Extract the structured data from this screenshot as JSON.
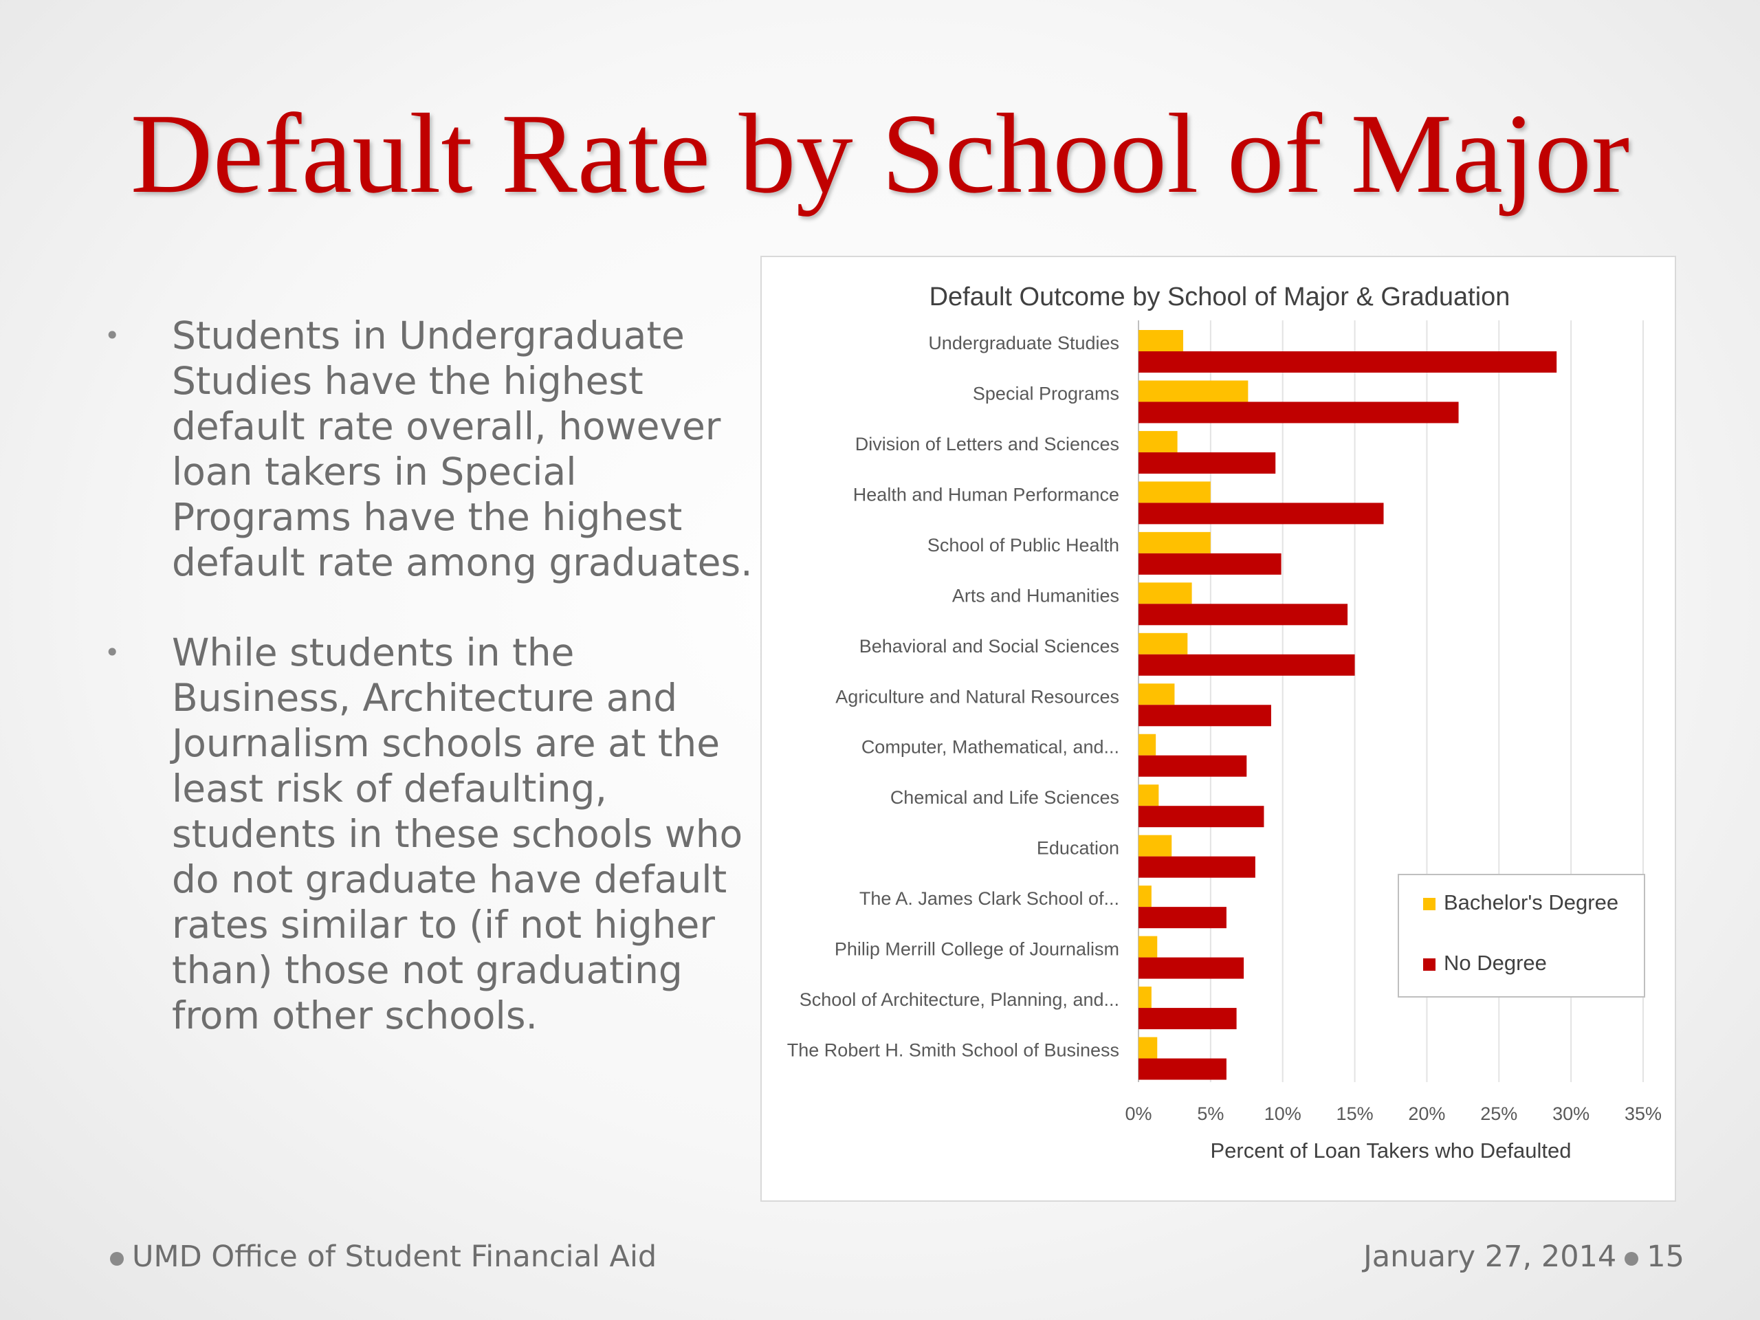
{
  "slide": {
    "title": "Default Rate by School of Major",
    "bullets": [
      "Students in Undergraduate Studies have the highest default rate overall, however loan takers in Special Programs have the highest default rate among graduates.",
      "While students in the Business, Architecture and Journalism schools are at the least risk of defaulting, students in these schools who do not graduate have default rates similar to (if not higher than) those not graduating from other schools."
    ],
    "bullet_marker": "•"
  },
  "footer": {
    "left": "UMD Office of Student Financial Aid",
    "date": "January 27, 2014",
    "page_number": "15"
  },
  "colors": {
    "title": "#c00000",
    "bachelors": "#ffc000",
    "no_degree": "#c00000",
    "body_text": "#6e6e6e"
  },
  "chart_data": {
    "type": "bar",
    "orientation": "horizontal",
    "title": "Default Outcome by School of Major & Graduation",
    "xlabel": "Percent of Loan Takers who Defaulted",
    "ylabel": "",
    "xlim": [
      0,
      35
    ],
    "x_ticks": [
      "0%",
      "5%",
      "10%",
      "15%",
      "20%",
      "25%",
      "30%",
      "35%"
    ],
    "grid": true,
    "legend_position": "right",
    "categories": [
      "Undergraduate Studies",
      "Special Programs",
      "Division of Letters and Sciences",
      "Health and Human Performance",
      "School of Public Health",
      "Arts and Humanities",
      "Behavioral and Social Sciences",
      "Agriculture and Natural Resources",
      "Computer, Mathematical, and...",
      "Chemical and Life Sciences",
      "Education",
      "The A. James Clark School of...",
      "Philip Merrill College of Journalism",
      "School of Architecture, Planning, and...",
      "The Robert H. Smith School of Business"
    ],
    "series": [
      {
        "name": "Bachelor's Degree",
        "color": "#ffc000",
        "values": [
          3.1,
          7.6,
          2.7,
          5.0,
          5.0,
          3.7,
          3.4,
          2.5,
          1.2,
          1.4,
          2.3,
          0.9,
          1.3,
          0.9,
          1.3
        ]
      },
      {
        "name": "No Degree",
        "color": "#c00000",
        "values": [
          29.0,
          22.2,
          9.5,
          17.0,
          9.9,
          14.5,
          15.0,
          9.2,
          7.5,
          8.7,
          8.1,
          6.1,
          7.3,
          6.8,
          6.1
        ]
      }
    ]
  }
}
